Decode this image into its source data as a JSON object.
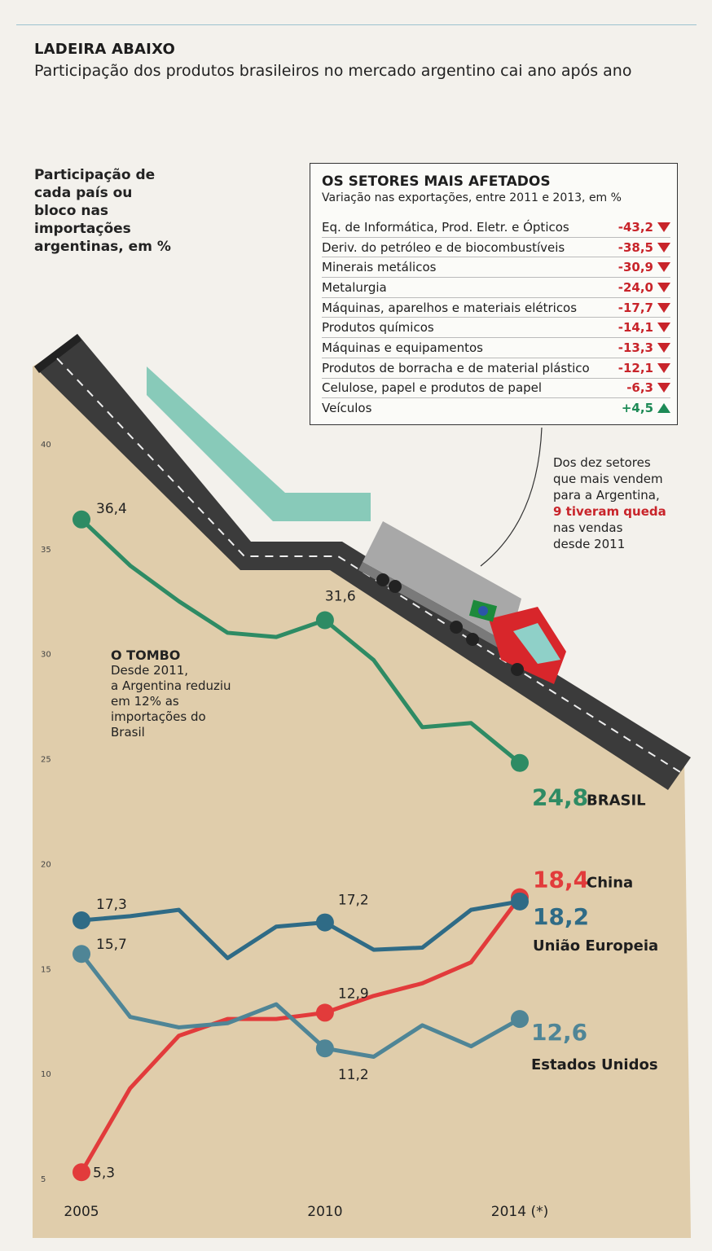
{
  "header": {
    "kicker": "LADEIRA ABAIXO",
    "headline": "Participação dos produtos brasileiros no mercado argentino cai ano após ano"
  },
  "chart_subject": "Participação de cada país ou bloco nas importações argentinas, em %",
  "chart_subject_lines": [
    "Participação de",
    "cada país ou",
    "bloco nas",
    "importações",
    "argentinas, em %"
  ],
  "sectors": {
    "title": "OS SETORES MAIS AFETADOS",
    "subtitle": "Variação nas exportações, entre 2011 e 2013, em %",
    "rows": [
      {
        "name": "Eq. de Informática, Prod. Eletr. e Ópticos",
        "value": "-43,2",
        "dir": "down"
      },
      {
        "name": "Deriv. do petróleo e de biocombustíveis",
        "value": "-38,5",
        "dir": "down"
      },
      {
        "name": "Minerais metálicos",
        "value": "-30,9",
        "dir": "down"
      },
      {
        "name": "Metalurgia",
        "value": "-24,0",
        "dir": "down"
      },
      {
        "name": "Máquinas, aparelhos e materiais elétricos",
        "value": "-17,7",
        "dir": "down"
      },
      {
        "name": "Produtos químicos",
        "value": "-14,1",
        "dir": "down"
      },
      {
        "name": "Máquinas e equipamentos",
        "value": "-13,3",
        "dir": "down"
      },
      {
        "name": "Produtos de borracha e de material plástico",
        "value": "-12,1",
        "dir": "down"
      },
      {
        "name": "Celulose, papel e produtos de papel",
        "value": "-6,3",
        "dir": "down"
      },
      {
        "name": "Veículos",
        "value": "+4,5",
        "dir": "up"
      }
    ],
    "colors": {
      "down": "#c8242a",
      "up": "#1d8a56"
    }
  },
  "note": {
    "line1": "Dos dez setores",
    "line2": "que mais vendem",
    "line3": "para a Argentina,",
    "highlight": "9 tiveram queda",
    "line5": "nas vendas",
    "line6": "desde 2011"
  },
  "tombo": {
    "title": "O TOMBO",
    "lines": [
      "Desde 2011,",
      "a Argentina reduziu",
      "em 12% as",
      "importações do",
      "Brasil"
    ]
  },
  "chart_data": {
    "type": "line",
    "ylim": [
      5,
      40
    ],
    "yticks": [
      5,
      10,
      15,
      20,
      25,
      30,
      35,
      40
    ],
    "xlim": [
      2005,
      2014
    ],
    "xticks": [
      {
        "value": 2005,
        "label": "2005"
      },
      {
        "value": 2010,
        "label": "2010"
      },
      {
        "value": 2014,
        "label": "2014 (*)"
      }
    ],
    "series": [
      {
        "name": "BRASIL",
        "color": "#2e8b64",
        "x": [
          2005,
          2006,
          2007,
          2008,
          2009,
          2010,
          2011,
          2012,
          2013,
          2014
        ],
        "y": [
          36.4,
          34.2,
          32.5,
          31.0,
          30.8,
          31.6,
          29.7,
          26.5,
          26.7,
          24.8
        ],
        "labels": [
          {
            "i": 0,
            "text": "36,4"
          },
          {
            "i": 5,
            "text": "31,6"
          }
        ],
        "end_label": "24,8"
      },
      {
        "name": "China",
        "color": "#e23b3b",
        "x": [
          2005,
          2006,
          2007,
          2008,
          2009,
          2010,
          2011,
          2012,
          2013,
          2014
        ],
        "y": [
          5.3,
          9.3,
          11.8,
          12.6,
          12.6,
          12.9,
          13.7,
          14.3,
          15.3,
          18.4
        ],
        "labels": [
          {
            "i": 0,
            "text": "5,3"
          },
          {
            "i": 5,
            "text": "12,9"
          }
        ],
        "end_label": "18,4"
      },
      {
        "name": "União Europeia",
        "color": "#2f6b86",
        "x": [
          2005,
          2006,
          2007,
          2008,
          2009,
          2010,
          2011,
          2012,
          2013,
          2014
        ],
        "y": [
          17.3,
          17.5,
          17.8,
          15.5,
          17.0,
          17.2,
          15.9,
          16.0,
          17.8,
          18.2
        ],
        "labels": [
          {
            "i": 0,
            "text": "17,3"
          },
          {
            "i": 5,
            "text": "17,2"
          }
        ],
        "end_label": "18,2"
      },
      {
        "name": "Estados Unidos",
        "color": "#4f8596",
        "x": [
          2005,
          2006,
          2007,
          2008,
          2009,
          2010,
          2011,
          2012,
          2013,
          2014
        ],
        "y": [
          15.7,
          12.7,
          12.2,
          12.4,
          13.3,
          11.2,
          10.8,
          12.3,
          11.3,
          12.6
        ],
        "labels": [
          {
            "i": 0,
            "text": "15,7"
          },
          {
            "i": 5,
            "text": "11,2"
          }
        ],
        "end_label": "12,6"
      }
    ]
  }
}
